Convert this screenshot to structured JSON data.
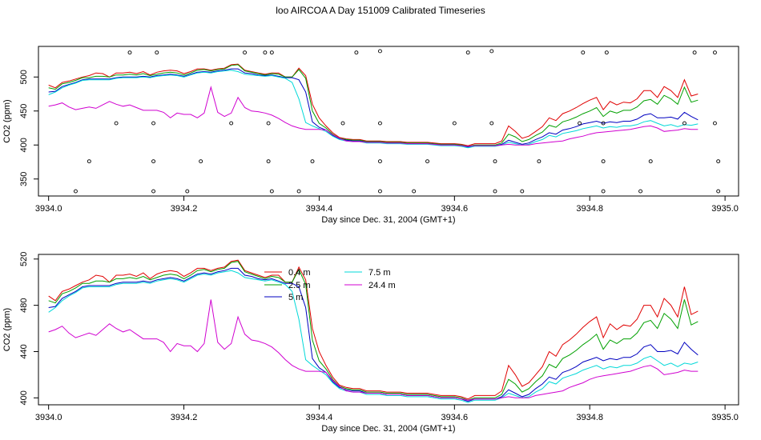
{
  "page": {
    "title": "loo AIRCOA A  Day 151009  Calibrated Timeseries"
  },
  "colors": {
    "0.4 m": "#e00000",
    "2.5 m": "#00a000",
    "5 m": "#0000c0",
    "7.5 m": "#00d8d8",
    "24.4 m": "#d000d0",
    "axis": "#000000"
  },
  "chart_data": [
    {
      "type": "line",
      "xlabel": "Day since Dec. 31, 2004 (GMT+1)",
      "ylabel": "CO2 (ppm)",
      "xlim": [
        3933.985,
        3935.02
      ],
      "ylim": [
        325,
        545
      ],
      "xticks": [
        "3934.0",
        "3934.2",
        "3934.4",
        "3934.6",
        "3934.8",
        "3935.0"
      ],
      "yticks": [
        "350",
        "400",
        "450",
        "500"
      ],
      "series_names": [
        "0.4 m",
        "2.5 m",
        "5 m",
        "7.5 m",
        "24.4 m"
      ],
      "calibration_points": {
        "x": [
          3934.04,
          3934.06,
          3934.1,
          3934.12,
          3934.155,
          3934.155,
          3934.155,
          3934.16,
          3934.205,
          3934.225,
          3934.27,
          3934.29,
          3934.32,
          3934.325,
          3934.325,
          3934.33,
          3934.33,
          3934.37,
          3934.39,
          3934.435,
          3934.455,
          3934.49,
          3934.49,
          3934.49,
          3934.49,
          3934.54,
          3934.56,
          3934.6,
          3934.62,
          3934.655,
          3934.655,
          3934.66,
          3934.66,
          3934.7,
          3934.725,
          3934.785,
          3934.79,
          3934.82,
          3934.82,
          3934.82,
          3934.825,
          3934.875,
          3934.89,
          3934.94,
          3934.955,
          3934.985,
          3934.985,
          3934.99,
          3934.99
        ],
        "y": [
          332,
          376,
          432,
          536,
          332,
          376,
          432,
          536,
          332,
          376,
          432,
          536,
          536,
          432,
          376,
          536,
          332,
          332,
          376,
          432,
          536,
          332,
          376,
          432,
          538,
          332,
          376,
          432,
          536,
          432,
          538,
          376,
          332,
          332,
          376,
          432,
          536,
          332,
          376,
          432,
          536,
          332,
          376,
          432,
          536,
          432,
          536,
          376,
          332
        ]
      }
    },
    {
      "type": "line",
      "xlabel": "Day since Dec. 31, 2004 (GMT+1)",
      "ylabel": "CO2 (ppm)",
      "xlim": [
        3933.985,
        3935.02
      ],
      "ylim": [
        394,
        524
      ],
      "xticks": [
        "3934.0",
        "3934.2",
        "3934.4",
        "3934.6",
        "3934.8",
        "3935.0"
      ],
      "yticks": [
        "400",
        "440",
        "480",
        "520"
      ],
      "legend": {
        "position": "top-center",
        "entries": [
          "0.4 m",
          "2.5 m",
          "5 m",
          "7.5 m",
          "24.4 m"
        ]
      },
      "series_names": [
        "0.4 m",
        "2.5 m",
        "5 m",
        "7.5 m",
        "24.4 m"
      ]
    }
  ],
  "series_data": {
    "x_start": 3934.0,
    "x_step": 0.01,
    "series": [
      {
        "name": "0.4 m",
        "values": [
          488,
          484,
          492,
          494,
          497,
          500,
          502,
          506,
          505,
          500,
          506,
          506,
          507,
          505,
          508,
          503,
          507,
          509,
          510,
          509,
          505,
          508,
          512,
          512,
          510,
          512,
          513,
          518,
          519,
          510,
          508,
          506,
          504,
          506,
          506,
          500,
          500,
          513,
          502,
          460,
          440,
          428,
          418,
          411,
          409,
          408,
          408,
          406,
          406,
          406,
          405,
          405,
          405,
          404,
          404,
          404,
          404,
          403,
          402,
          402,
          402,
          401,
          399,
          402,
          402,
          402,
          402,
          406,
          428,
          420,
          410,
          413,
          420,
          427,
          440,
          436,
          446,
          450,
          455,
          461,
          466,
          470,
          452,
          464,
          459,
          463,
          462,
          468,
          480,
          480,
          470,
          486,
          480,
          470,
          496,
          472,
          475
        ]
      },
      {
        "name": "2.5 m",
        "values": [
          484,
          482,
          490,
          492,
          495,
          499,
          499,
          501,
          501,
          500,
          503,
          503,
          504,
          503,
          505,
          502,
          504,
          506,
          507,
          506,
          503,
          506,
          510,
          511,
          509,
          511,
          512,
          517,
          518,
          509,
          507,
          505,
          503,
          505,
          504,
          500,
          500,
          511,
          498,
          450,
          432,
          425,
          416,
          410,
          408,
          407,
          407,
          405,
          405,
          405,
          404,
          404,
          404,
          403,
          403,
          403,
          403,
          402,
          401,
          401,
          401,
          400,
          398,
          400,
          400,
          400,
          400,
          403,
          416,
          412,
          405,
          408,
          414,
          419,
          429,
          426,
          434,
          437,
          441,
          446,
          450,
          455,
          442,
          450,
          447,
          451,
          451,
          456,
          465,
          467,
          460,
          473,
          468,
          460,
          485,
          463,
          466
        ]
      },
      {
        "name": "5 m",
        "values": [
          478,
          479,
          486,
          489,
          492,
          496,
          497,
          497,
          497,
          497,
          499,
          500,
          500,
          500,
          501,
          500,
          502,
          503,
          504,
          503,
          501,
          504,
          507,
          508,
          507,
          509,
          510,
          512,
          512,
          506,
          505,
          503,
          502,
          503,
          501,
          499,
          499,
          496,
          478,
          434,
          426,
          422,
          414,
          409,
          407,
          406,
          406,
          404,
          404,
          404,
          403,
          403,
          403,
          402,
          402,
          402,
          402,
          401,
          400,
          400,
          400,
          399,
          397,
          399,
          399,
          399,
          399,
          401,
          407,
          404,
          401,
          403,
          408,
          412,
          418,
          416,
          422,
          424,
          427,
          431,
          433,
          435,
          432,
          434,
          433,
          435,
          435,
          438,
          444,
          446,
          440,
          440,
          441,
          438,
          448,
          442,
          437
        ]
      },
      {
        "name": "7.5 m",
        "values": [
          474,
          478,
          484,
          488,
          491,
          495,
          496,
          496,
          496,
          496,
          498,
          499,
          499,
          499,
          500,
          499,
          501,
          502,
          503,
          502,
          500,
          503,
          506,
          507,
          506,
          508,
          509,
          510,
          508,
          504,
          503,
          502,
          501,
          502,
          500,
          498,
          492,
          468,
          433,
          428,
          424,
          420,
          413,
          408,
          406,
          405,
          405,
          403,
          403,
          403,
          402,
          402,
          402,
          401,
          401,
          401,
          401,
          400,
          399,
          399,
          399,
          398,
          396,
          398,
          398,
          398,
          398,
          400,
          404,
          402,
          400,
          401,
          405,
          408,
          414,
          412,
          417,
          419,
          421,
          424,
          426,
          428,
          425,
          427,
          426,
          428,
          428,
          430,
          434,
          436,
          432,
          428,
          430,
          427,
          430,
          429,
          431
        ]
      },
      {
        "name": "24.4 m",
        "values": [
          457,
          459,
          462,
          456,
          452,
          454,
          456,
          454,
          459,
          464,
          460,
          457,
          459,
          455,
          451,
          451,
          451,
          448,
          440,
          447,
          445,
          445,
          440,
          447,
          485,
          448,
          442,
          447,
          470,
          455,
          450,
          449,
          447,
          444,
          439,
          433,
          428,
          425,
          423,
          423,
          423,
          422,
          415,
          410,
          406,
          405,
          405,
          404,
          404,
          404,
          403,
          403,
          403,
          402,
          402,
          402,
          402,
          401,
          400,
          400,
          400,
          399,
          398,
          399,
          399,
          399,
          399,
          400,
          401,
          400,
          400,
          400,
          402,
          403,
          404,
          405,
          406,
          409,
          411,
          413,
          416,
          418,
          419,
          420,
          421,
          422,
          423,
          425,
          427,
          428,
          425,
          420,
          421,
          422,
          424,
          423,
          423
        ]
      }
    ]
  }
}
